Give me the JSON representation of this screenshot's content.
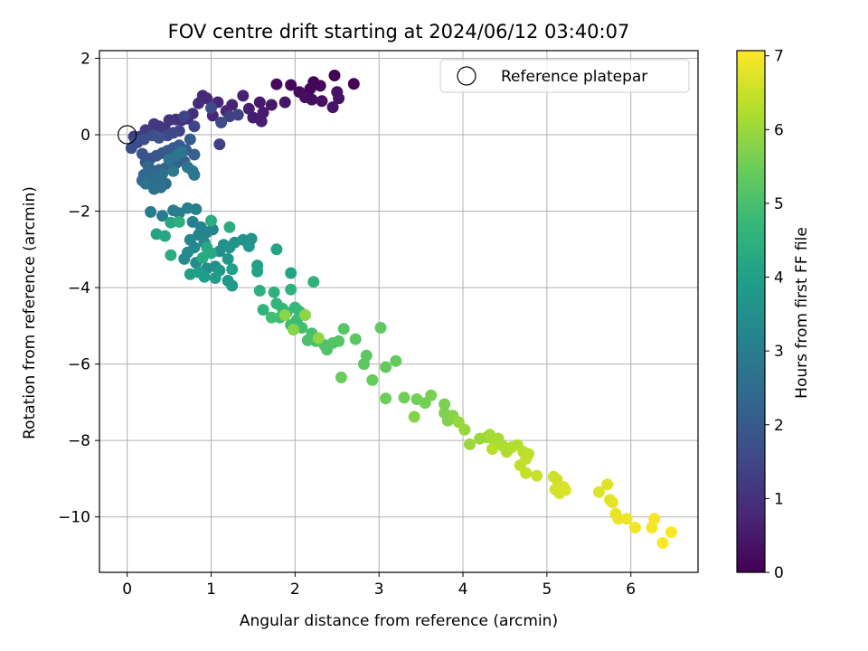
{
  "chart_data": {
    "type": "scatter",
    "title": "FOV centre drift starting at 2024/06/12 03:40:07",
    "xlabel": "Angular distance from reference (arcmin)",
    "ylabel": "Rotation from reference (arcmin)",
    "colorbar_label": "Hours from first FF file",
    "colormap": "viridis",
    "xlim": [
      -0.33,
      6.8
    ],
    "ylim": [
      -11.45,
      2.2
    ],
    "xticks": [
      0,
      1,
      2,
      3,
      4,
      5,
      6
    ],
    "yticks": [
      -10,
      -8,
      -6,
      -4,
      -2,
      0,
      2
    ],
    "color_range": [
      0,
      7.07
    ],
    "color_ticks": [
      0,
      1,
      2,
      3,
      4,
      5,
      6,
      7
    ],
    "grid": true,
    "legend_position": "top-right",
    "reference": {
      "label": "Reference platepar",
      "x": 0.0,
      "y": 0.0
    },
    "series": [
      {
        "points": [
          [
            2.47,
            1.55
          ],
          [
            2.7,
            1.33
          ],
          [
            2.22,
            1.38
          ],
          [
            2.18,
            1.2
          ],
          [
            2.3,
            1.28
          ],
          [
            1.95,
            1.3
          ],
          [
            1.78,
            1.32
          ],
          [
            2.05,
            1.12
          ],
          [
            2.12,
            0.98
          ],
          [
            2.2,
            0.92
          ],
          [
            2.32,
            0.88
          ],
          [
            2.5,
            1.12
          ],
          [
            2.52,
            0.95
          ],
          [
            2.45,
            0.72
          ],
          [
            1.88,
            0.85
          ],
          [
            1.72,
            0.78
          ],
          [
            1.58,
            0.85
          ],
          [
            1.62,
            0.58
          ],
          [
            1.5,
            0.45
          ],
          [
            1.6,
            0.35
          ],
          [
            1.45,
            0.68
          ],
          [
            1.38,
            1.02
          ],
          [
            1.25,
            0.78
          ],
          [
            1.18,
            0.62
          ],
          [
            1.08,
            0.85
          ],
          [
            1.02,
            0.5
          ],
          [
            0.95,
            0.95
          ],
          [
            0.9,
            1.02
          ],
          [
            0.85,
            0.82
          ],
          [
            0.78,
            0.55
          ],
          [
            0.72,
            0.42
          ],
          [
            0.65,
            0.38
          ],
          [
            0.58,
            0.4
          ],
          [
            0.5,
            0.38
          ],
          [
            0.45,
            0.15
          ],
          [
            0.38,
            0.22
          ],
          [
            0.32,
            0.28
          ],
          [
            0.28,
            0.08
          ],
          [
            0.22,
            0.12
          ],
          [
            0.15,
            -0.05
          ],
          [
            0.08,
            -0.05
          ],
          [
            0.12,
            -0.2
          ],
          [
            1.1,
            -0.25
          ],
          [
            1.22,
            0.48
          ],
          [
            1.32,
            0.52
          ],
          [
            0.68,
            0.48
          ],
          [
            0.8,
            0.22
          ],
          [
            0.62,
            0.1
          ],
          [
            0.55,
            0.05
          ],
          [
            0.48,
            -0.02
          ],
          [
            1.0,
            0.7
          ],
          [
            1.12,
            0.32
          ]
        ]
      },
      {
        "points": [
          [
            0.05,
            -0.35
          ],
          [
            0.1,
            -0.18
          ],
          [
            0.2,
            -0.12
          ],
          [
            0.3,
            -0.02
          ],
          [
            0.38,
            -0.08
          ],
          [
            0.18,
            -0.5
          ],
          [
            0.22,
            -0.72
          ],
          [
            0.28,
            -0.62
          ],
          [
            0.35,
            -0.55
          ],
          [
            0.42,
            -0.48
          ],
          [
            0.48,
            -0.42
          ],
          [
            0.55,
            -0.35
          ],
          [
            0.62,
            -0.28
          ],
          [
            0.7,
            -0.4
          ],
          [
            0.75,
            -0.12
          ],
          [
            0.8,
            -0.52
          ],
          [
            0.68,
            -0.7
          ],
          [
            0.58,
            -0.75
          ],
          [
            0.5,
            -0.8
          ],
          [
            0.45,
            -0.88
          ],
          [
            0.38,
            -0.92
          ],
          [
            0.32,
            -0.95
          ],
          [
            0.25,
            -0.82
          ],
          [
            0.2,
            -1.05
          ],
          [
            0.18,
            -1.2
          ],
          [
            0.25,
            -1.18
          ],
          [
            0.3,
            -1.08
          ],
          [
            0.36,
            -1.22
          ],
          [
            0.42,
            -1.02
          ],
          [
            0.46,
            -1.28
          ],
          [
            0.4,
            -1.38
          ],
          [
            0.32,
            -1.42
          ],
          [
            0.22,
            -1.28
          ],
          [
            0.5,
            -0.65
          ],
          [
            0.58,
            -0.55
          ],
          [
            0.65,
            -0.45
          ],
          [
            0.72,
            -0.85
          ],
          [
            0.78,
            -0.95
          ],
          [
            0.8,
            -1.05
          ],
          [
            0.55,
            -0.95
          ]
        ]
      },
      {
        "points": [
          [
            0.28,
            -2.02
          ],
          [
            0.42,
            -2.12
          ],
          [
            0.55,
            -1.98
          ],
          [
            0.62,
            -2.05
          ],
          [
            0.72,
            -1.92
          ],
          [
            0.82,
            -1.95
          ],
          [
            0.78,
            -2.28
          ],
          [
            0.88,
            -2.42
          ],
          [
            0.95,
            -2.55
          ],
          [
            1.02,
            -2.48
          ],
          [
            0.85,
            -2.62
          ],
          [
            0.75,
            -2.75
          ],
          [
            0.92,
            -2.82
          ],
          [
            0.8,
            -2.95
          ],
          [
            0.72,
            -3.08
          ],
          [
            0.68,
            -3.25
          ],
          [
            0.82,
            -3.35
          ],
          [
            0.95,
            -3.5
          ],
          [
            1.05,
            -3.45
          ],
          [
            1.1,
            -3.05
          ],
          [
            1.15,
            -2.88
          ],
          [
            1.22,
            -2.95
          ],
          [
            1.28,
            -2.82
          ],
          [
            1.38,
            -2.75
          ],
          [
            1.48,
            -2.72
          ],
          [
            1.45,
            -2.92
          ],
          [
            1.2,
            -3.25
          ],
          [
            1.1,
            -3.55
          ],
          [
            1.2,
            -3.82
          ],
          [
            1.25,
            -3.95
          ],
          [
            1.05,
            -3.75
          ],
          [
            0.92,
            -3.72
          ],
          [
            0.85,
            -3.6
          ],
          [
            0.75,
            -3.65
          ],
          [
            1.25,
            -3.52
          ],
          [
            1.55,
            -3.42
          ],
          [
            1.55,
            -3.58
          ],
          [
            1.78,
            -3.0
          ],
          [
            1.95,
            -3.62
          ],
          [
            0.35,
            -2.6
          ],
          [
            0.45,
            -2.65
          ],
          [
            0.52,
            -2.3
          ],
          [
            0.95,
            -2.95
          ],
          [
            1.0,
            -3.1
          ],
          [
            0.9,
            -3.22
          ],
          [
            1.22,
            -2.42
          ],
          [
            0.52,
            -3.15
          ],
          [
            1.0,
            -2.25
          ],
          [
            0.62,
            -2.28
          ]
        ]
      },
      {
        "points": [
          [
            1.58,
            -4.08
          ],
          [
            1.75,
            -4.12
          ],
          [
            1.95,
            -4.05
          ],
          [
            2.22,
            -3.85
          ],
          [
            1.62,
            -4.58
          ],
          [
            1.78,
            -4.42
          ],
          [
            1.85,
            -4.55
          ],
          [
            1.9,
            -4.65
          ],
          [
            2.0,
            -4.52
          ],
          [
            2.05,
            -4.62
          ],
          [
            2.1,
            -4.7
          ],
          [
            2.02,
            -4.85
          ],
          [
            1.95,
            -4.98
          ],
          [
            1.82,
            -4.78
          ],
          [
            1.72,
            -4.78
          ],
          [
            2.08,
            -5.05
          ],
          [
            2.2,
            -5.2
          ],
          [
            2.25,
            -5.4
          ],
          [
            2.15,
            -5.38
          ],
          [
            2.35,
            -5.5
          ],
          [
            2.38,
            -5.62
          ],
          [
            2.45,
            -5.45
          ],
          [
            2.52,
            -5.4
          ],
          [
            2.58,
            -5.08
          ],
          [
            2.72,
            -5.35
          ],
          [
            2.85,
            -5.78
          ],
          [
            2.82,
            -6.0
          ],
          [
            3.02,
            -5.05
          ],
          [
            3.08,
            -6.08
          ],
          [
            3.2,
            -5.92
          ],
          [
            2.92,
            -6.42
          ],
          [
            2.55,
            -6.35
          ],
          [
            3.08,
            -6.9
          ],
          [
            3.3,
            -6.88
          ],
          [
            3.45,
            -6.92
          ],
          [
            3.55,
            -7.02
          ],
          [
            3.62,
            -6.82
          ],
          [
            3.78,
            -7.05
          ],
          [
            3.78,
            -7.28
          ],
          [
            3.82,
            -7.48
          ],
          [
            3.42,
            -7.38
          ],
          [
            3.88,
            -7.35
          ],
          [
            1.98,
            -5.1
          ],
          [
            1.88,
            -4.72
          ],
          [
            2.12,
            -4.72
          ],
          [
            2.28,
            -5.32
          ]
        ]
      },
      {
        "points": [
          [
            3.95,
            -7.52
          ],
          [
            4.02,
            -7.72
          ],
          [
            4.08,
            -8.1
          ],
          [
            4.2,
            -7.95
          ],
          [
            4.28,
            -7.92
          ],
          [
            4.32,
            -7.85
          ],
          [
            4.38,
            -8.05
          ],
          [
            4.42,
            -7.95
          ],
          [
            4.48,
            -8.15
          ],
          [
            4.52,
            -8.3
          ],
          [
            4.58,
            -8.18
          ],
          [
            4.65,
            -8.12
          ],
          [
            4.35,
            -8.22
          ],
          [
            4.72,
            -8.3
          ],
          [
            4.78,
            -8.35
          ],
          [
            4.75,
            -8.48
          ],
          [
            4.68,
            -8.65
          ],
          [
            4.75,
            -8.85
          ],
          [
            4.88,
            -8.92
          ]
        ]
      },
      {
        "points": [
          [
            5.08,
            -8.95
          ],
          [
            5.12,
            -9.02
          ],
          [
            5.1,
            -9.28
          ],
          [
            5.15,
            -9.38
          ],
          [
            5.2,
            -9.22
          ],
          [
            5.22,
            -9.3
          ],
          [
            5.62,
            -9.35
          ],
          [
            5.72,
            -9.15
          ],
          [
            5.75,
            -9.55
          ],
          [
            5.78,
            -9.62
          ],
          [
            5.82,
            -9.92
          ],
          [
            5.85,
            -10.05
          ],
          [
            5.95,
            -10.05
          ],
          [
            6.05,
            -10.28
          ],
          [
            6.25,
            -10.28
          ],
          [
            6.28,
            -10.05
          ],
          [
            6.38,
            -10.68
          ],
          [
            6.48,
            -10.4
          ]
        ]
      }
    ]
  }
}
